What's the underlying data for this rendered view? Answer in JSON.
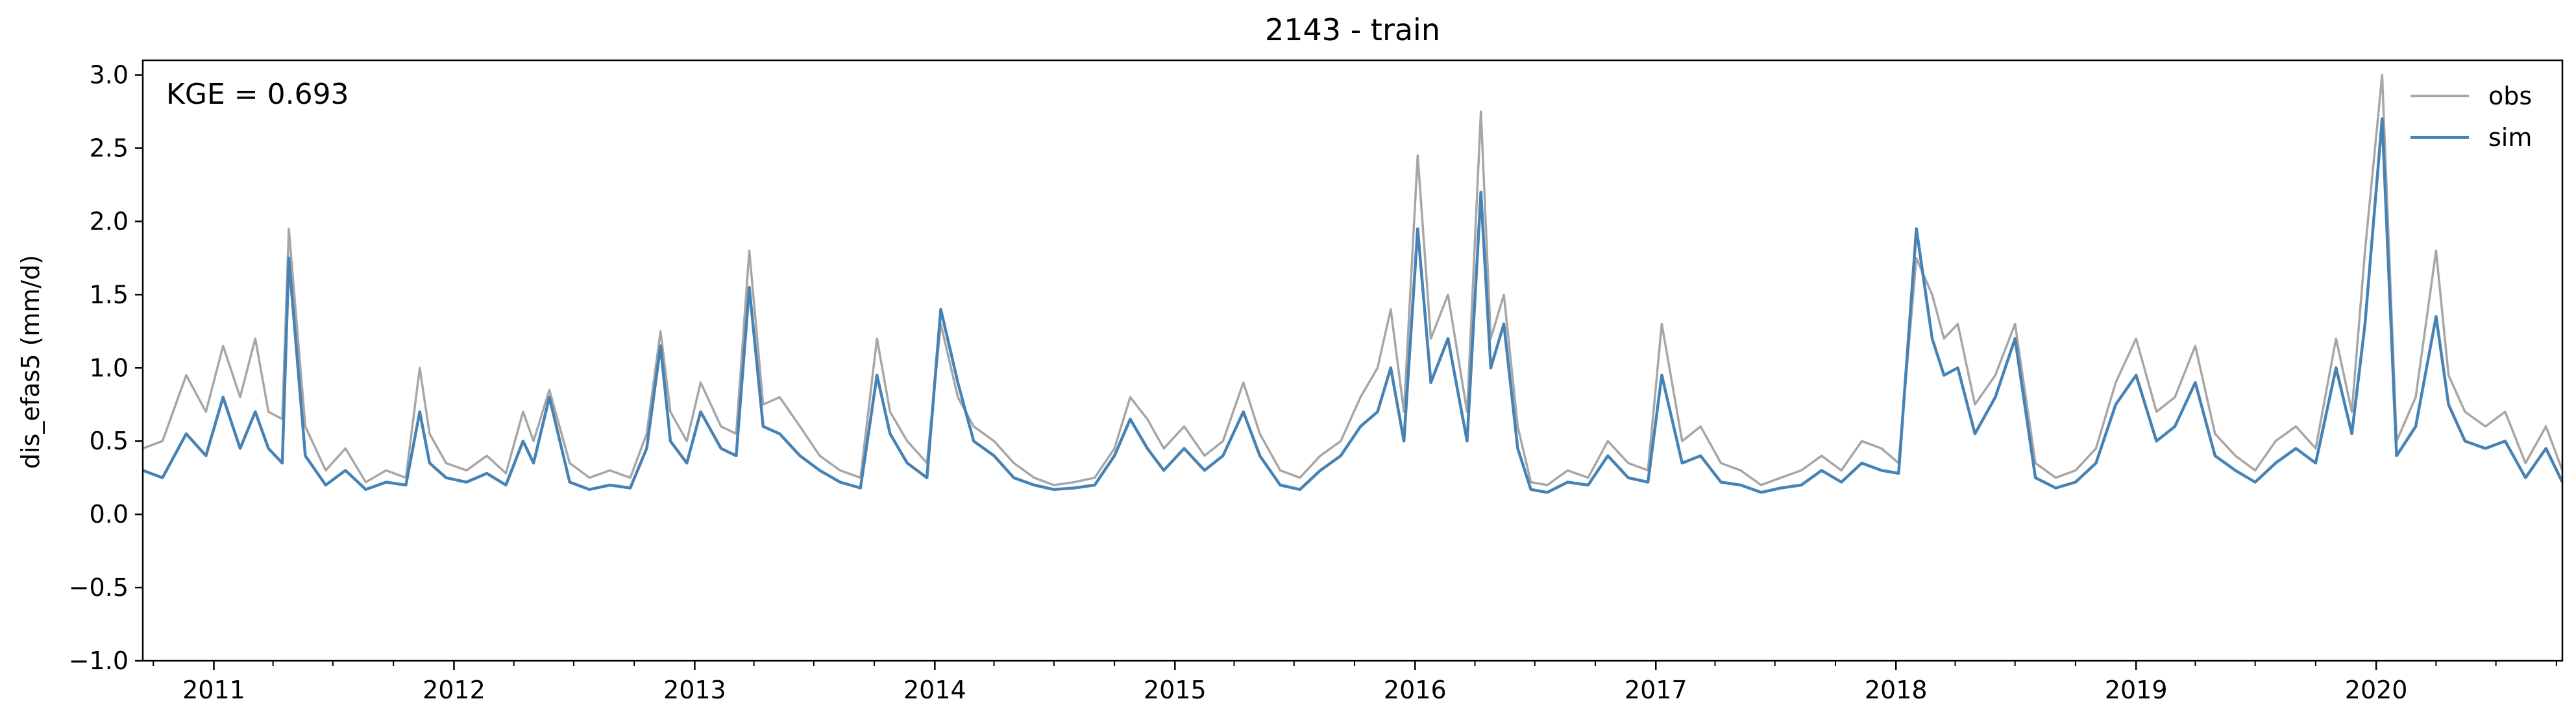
{
  "chart_data": {
    "type": "line",
    "title": "2143 - train",
    "xlabel": "",
    "ylabel": "dis_efas5 (mm/d)",
    "annotation": "KGE = 0.693",
    "xlim": [
      "2010-09-15",
      "2020-10-10"
    ],
    "ylim": [
      -1.0,
      3.1
    ],
    "x_tick_labels": [
      "2011",
      "2012",
      "2013",
      "2014",
      "2015",
      "2016",
      "2017",
      "2018",
      "2019",
      "2020"
    ],
    "y_ticks": [
      -1.0,
      -0.5,
      0.0,
      0.5,
      1.0,
      1.5,
      2.0,
      2.5,
      3.0
    ],
    "y_tick_labels": [
      "−1.0",
      "−0.5",
      "0.0",
      "0.5",
      "1.0",
      "1.5",
      "2.0",
      "2.5",
      "3.0"
    ],
    "grid": false,
    "legend_position": "top-right",
    "colors": {
      "obs": "#a6a6a6",
      "sim": "#4682b4",
      "axes": "#000000"
    },
    "series": [
      {
        "name": "obs",
        "x": [
          "2010-09-15",
          "2010-10-15",
          "2010-11-20",
          "2010-12-20",
          "2011-01-15",
          "2011-02-10",
          "2011-03-05",
          "2011-03-25",
          "2011-04-15",
          "2011-04-25",
          "2011-05-20",
          "2011-06-20",
          "2011-07-20",
          "2011-08-20",
          "2011-09-20",
          "2011-10-20",
          "2011-11-10",
          "2011-11-25",
          "2011-12-20",
          "2012-01-20",
          "2012-02-20",
          "2012-03-20",
          "2012-04-15",
          "2012-05-01",
          "2012-05-25",
          "2012-06-25",
          "2012-07-25",
          "2012-08-25",
          "2012-09-25",
          "2012-10-20",
          "2012-11-10",
          "2012-11-25",
          "2012-12-20",
          "2013-01-10",
          "2013-02-10",
          "2013-03-05",
          "2013-03-25",
          "2013-04-15",
          "2013-05-10",
          "2013-06-10",
          "2013-07-10",
          "2013-08-10",
          "2013-09-10",
          "2013-10-05",
          "2013-10-25",
          "2013-11-20",
          "2013-12-20",
          "2014-01-10",
          "2014-02-05",
          "2014-03-01",
          "2014-04-01",
          "2014-05-01",
          "2014-06-01",
          "2014-07-01",
          "2014-08-01",
          "2014-09-01",
          "2014-10-01",
          "2014-10-25",
          "2014-11-20",
          "2014-12-15",
          "2015-01-15",
          "2015-02-15",
          "2015-03-15",
          "2015-04-15",
          "2015-05-10",
          "2015-06-10",
          "2015-07-10",
          "2015-08-10",
          "2015-09-10",
          "2015-10-10",
          "2015-11-05",
          "2015-11-25",
          "2015-12-15",
          "2016-01-05",
          "2016-01-25",
          "2016-02-20",
          "2016-03-20",
          "2016-04-10",
          "2016-04-25",
          "2016-05-15",
          "2016-06-05",
          "2016-06-25",
          "2016-07-20",
          "2016-08-20",
          "2016-09-20",
          "2016-10-20",
          "2016-11-20",
          "2016-12-20",
          "2017-01-10",
          "2017-02-10",
          "2017-03-10",
          "2017-04-10",
          "2017-05-10",
          "2017-06-10",
          "2017-07-10",
          "2017-08-10",
          "2017-09-10",
          "2017-10-10",
          "2017-11-10",
          "2017-12-10",
          "2018-01-05",
          "2018-02-01",
          "2018-02-25",
          "2018-03-15",
          "2018-04-05",
          "2018-05-01",
          "2018-06-01",
          "2018-07-01",
          "2018-08-01",
          "2018-09-01",
          "2018-10-01",
          "2018-11-01",
          "2018-12-01",
          "2019-01-01",
          "2019-02-01",
          "2019-03-01",
          "2019-04-01",
          "2019-05-01",
          "2019-06-01",
          "2019-07-01",
          "2019-08-01",
          "2019-09-01",
          "2019-10-01",
          "2019-11-01",
          "2019-11-25",
          "2019-12-15",
          "2020-01-10",
          "2020-02-01",
          "2020-03-01",
          "2020-04-01",
          "2020-04-20",
          "2020-05-15",
          "2020-06-15",
          "2020-07-15",
          "2020-08-15",
          "2020-09-15",
          "2020-10-10"
        ],
        "y": [
          0.45,
          0.5,
          0.95,
          0.7,
          1.15,
          0.8,
          1.2,
          0.7,
          0.65,
          1.95,
          0.6,
          0.3,
          0.45,
          0.22,
          0.3,
          0.25,
          1.0,
          0.55,
          0.35,
          0.3,
          0.4,
          0.28,
          0.7,
          0.5,
          0.85,
          0.35,
          0.25,
          0.3,
          0.25,
          0.55,
          1.25,
          0.7,
          0.5,
          0.9,
          0.6,
          0.55,
          1.8,
          0.75,
          0.8,
          0.6,
          0.4,
          0.3,
          0.25,
          1.2,
          0.7,
          0.5,
          0.35,
          1.3,
          0.8,
          0.6,
          0.5,
          0.35,
          0.25,
          0.2,
          0.22,
          0.25,
          0.45,
          0.8,
          0.65,
          0.45,
          0.6,
          0.4,
          0.5,
          0.9,
          0.55,
          0.3,
          0.25,
          0.4,
          0.5,
          0.8,
          1.0,
          1.4,
          0.7,
          2.45,
          1.2,
          1.5,
          0.7,
          2.75,
          1.2,
          1.5,
          0.6,
          0.22,
          0.2,
          0.3,
          0.25,
          0.5,
          0.35,
          0.3,
          1.3,
          0.5,
          0.6,
          0.35,
          0.3,
          0.2,
          0.25,
          0.3,
          0.4,
          0.3,
          0.5,
          0.45,
          0.35,
          1.75,
          1.5,
          1.2,
          1.3,
          0.75,
          0.95,
          1.3,
          0.35,
          0.25,
          0.3,
          0.45,
          0.9,
          1.2,
          0.7,
          0.8,
          1.15,
          0.55,
          0.4,
          0.3,
          0.5,
          0.6,
          0.45,
          1.2,
          0.7,
          1.8,
          3.0,
          0.5,
          0.8,
          1.8,
          0.95,
          0.7,
          0.6,
          0.7,
          0.35,
          0.6,
          0.3
        ]
      },
      {
        "name": "sim",
        "x": [
          "2010-09-15",
          "2010-10-15",
          "2010-11-20",
          "2010-12-20",
          "2011-01-15",
          "2011-02-10",
          "2011-03-05",
          "2011-03-25",
          "2011-04-15",
          "2011-04-25",
          "2011-05-20",
          "2011-06-20",
          "2011-07-20",
          "2011-08-20",
          "2011-09-20",
          "2011-10-20",
          "2011-11-10",
          "2011-11-25",
          "2011-12-20",
          "2012-01-20",
          "2012-02-20",
          "2012-03-20",
          "2012-04-15",
          "2012-05-01",
          "2012-05-25",
          "2012-06-25",
          "2012-07-25",
          "2012-08-25",
          "2012-09-25",
          "2012-10-20",
          "2012-11-10",
          "2012-11-25",
          "2012-12-20",
          "2013-01-10",
          "2013-02-10",
          "2013-03-05",
          "2013-03-25",
          "2013-04-15",
          "2013-05-10",
          "2013-06-10",
          "2013-07-10",
          "2013-08-10",
          "2013-09-10",
          "2013-10-05",
          "2013-10-25",
          "2013-11-20",
          "2013-12-20",
          "2014-01-10",
          "2014-02-05",
          "2014-03-01",
          "2014-04-01",
          "2014-05-01",
          "2014-06-01",
          "2014-07-01",
          "2014-08-01",
          "2014-09-01",
          "2014-10-01",
          "2014-10-25",
          "2014-11-20",
          "2014-12-15",
          "2015-01-15",
          "2015-02-15",
          "2015-03-15",
          "2015-04-15",
          "2015-05-10",
          "2015-06-10",
          "2015-07-10",
          "2015-08-10",
          "2015-09-10",
          "2015-10-10",
          "2015-11-05",
          "2015-11-25",
          "2015-12-15",
          "2016-01-05",
          "2016-01-25",
          "2016-02-20",
          "2016-03-20",
          "2016-04-10",
          "2016-04-25",
          "2016-05-15",
          "2016-06-05",
          "2016-06-25",
          "2016-07-20",
          "2016-08-20",
          "2016-09-20",
          "2016-10-20",
          "2016-11-20",
          "2016-12-20",
          "2017-01-10",
          "2017-02-10",
          "2017-03-10",
          "2017-04-10",
          "2017-05-10",
          "2017-06-10",
          "2017-07-10",
          "2017-08-10",
          "2017-09-10",
          "2017-10-10",
          "2017-11-10",
          "2017-12-10",
          "2018-01-05",
          "2018-02-01",
          "2018-02-25",
          "2018-03-15",
          "2018-04-05",
          "2018-05-01",
          "2018-06-01",
          "2018-07-01",
          "2018-08-01",
          "2018-09-01",
          "2018-10-01",
          "2018-11-01",
          "2018-12-01",
          "2019-01-01",
          "2019-02-01",
          "2019-03-01",
          "2019-04-01",
          "2019-05-01",
          "2019-06-01",
          "2019-07-01",
          "2019-08-01",
          "2019-09-01",
          "2019-10-01",
          "2019-11-01",
          "2019-11-25",
          "2019-12-15",
          "2020-01-10",
          "2020-02-01",
          "2020-03-01",
          "2020-04-01",
          "2020-04-20",
          "2020-05-15",
          "2020-06-15",
          "2020-07-15",
          "2020-08-15",
          "2020-09-15",
          "2020-10-10"
        ],
        "y": [
          0.3,
          0.25,
          0.55,
          0.4,
          0.8,
          0.45,
          0.7,
          0.45,
          0.35,
          1.75,
          0.4,
          0.2,
          0.3,
          0.17,
          0.22,
          0.2,
          0.7,
          0.35,
          0.25,
          0.22,
          0.28,
          0.2,
          0.5,
          0.35,
          0.8,
          0.22,
          0.17,
          0.2,
          0.18,
          0.45,
          1.15,
          0.5,
          0.35,
          0.7,
          0.45,
          0.4,
          1.55,
          0.6,
          0.55,
          0.4,
          0.3,
          0.22,
          0.18,
          0.95,
          0.55,
          0.35,
          0.25,
          1.4,
          0.9,
          0.5,
          0.4,
          0.25,
          0.2,
          0.17,
          0.18,
          0.2,
          0.4,
          0.65,
          0.45,
          0.3,
          0.45,
          0.3,
          0.4,
          0.7,
          0.4,
          0.2,
          0.17,
          0.3,
          0.4,
          0.6,
          0.7,
          1.0,
          0.5,
          1.95,
          0.9,
          1.2,
          0.5,
          2.2,
          1.0,
          1.3,
          0.45,
          0.17,
          0.15,
          0.22,
          0.2,
          0.4,
          0.25,
          0.22,
          0.95,
          0.35,
          0.4,
          0.22,
          0.2,
          0.15,
          0.18,
          0.2,
          0.3,
          0.22,
          0.35,
          0.3,
          0.28,
          1.95,
          1.2,
          0.95,
          1.0,
          0.55,
          0.8,
          1.2,
          0.25,
          0.18,
          0.22,
          0.35,
          0.75,
          0.95,
          0.5,
          0.6,
          0.9,
          0.4,
          0.3,
          0.22,
          0.35,
          0.45,
          0.35,
          1.0,
          0.55,
          1.3,
          2.7,
          0.4,
          0.6,
          1.35,
          0.75,
          0.5,
          0.45,
          0.5,
          0.25,
          0.45,
          0.22
        ]
      }
    ]
  }
}
